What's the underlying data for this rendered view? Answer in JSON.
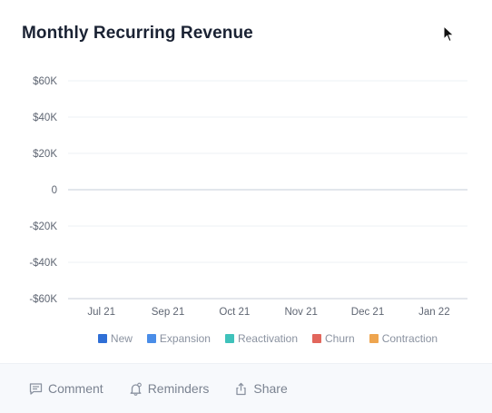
{
  "card": {
    "title": "Monthly Recurring Revenue"
  },
  "chart_data": {
    "type": "bar",
    "stacked": true,
    "categories": [
      "Jul 21",
      "Sep 21",
      "Oct 21",
      "Nov 21",
      "Dec 21",
      "Jan 22"
    ],
    "y_ticks": [
      60000,
      40000,
      20000,
      0,
      -20000,
      -40000,
      -60000
    ],
    "y_tick_labels": [
      "$60K",
      "$40K",
      "$20K",
      "0",
      "-$20K",
      "-$40K",
      "-$60K"
    ],
    "ylim": [
      -60000,
      60000
    ],
    "grid": true,
    "legend_position": "bottom",
    "series": [
      {
        "name": "New",
        "color": "#2f6fd6",
        "values": [
          0,
          0,
          0,
          0,
          0,
          0
        ]
      },
      {
        "name": "Expansion",
        "color": "#4a8de8",
        "values": [
          0,
          0,
          0,
          0,
          0,
          0
        ]
      },
      {
        "name": "Reactivation",
        "color": "#3fc2bb",
        "values": [
          0,
          0,
          0,
          0,
          0,
          0
        ]
      },
      {
        "name": "Churn",
        "color": "#e2665c",
        "values": [
          0,
          0,
          0,
          0,
          0,
          0
        ]
      },
      {
        "name": "Contraction",
        "color": "#eea54f",
        "values": [
          0,
          0,
          0,
          0,
          0,
          0
        ]
      }
    ]
  },
  "footer": {
    "comment_label": "Comment",
    "reminders_label": "Reminders",
    "share_label": "Share"
  },
  "icons": {
    "comment": "comment-icon",
    "reminders": "bell-icon",
    "share": "share-icon",
    "cursor": "mouse-cursor-icon"
  },
  "colors": {
    "title": "#1a2233",
    "footer_bg": "#f7f9fc",
    "muted_text": "#7b8391"
  }
}
